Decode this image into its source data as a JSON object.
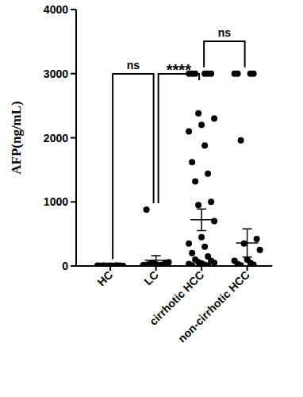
{
  "chart_data": {
    "type": "scatter",
    "y_label": "AFP(ng/mL)",
    "color": "#000000",
    "categories": [
      "HC",
      "LC",
      "cirrhotic HCC",
      "non-cirrhotic HCC"
    ],
    "points": [
      [
        2,
        3,
        4,
        5,
        6,
        3,
        2,
        4,
        5,
        7,
        3,
        4,
        6,
        2,
        5
      ],
      [
        5,
        10,
        15,
        20,
        30,
        40,
        50,
        60,
        25,
        12,
        8,
        880
      ],
      [
        3000,
        3000,
        3000,
        3000,
        3000,
        3000,
        2380,
        2300,
        2200,
        2100,
        1880,
        1620,
        1440,
        1320,
        1000,
        950,
        700,
        450,
        350,
        300,
        200,
        150,
        100,
        80,
        60,
        50,
        40,
        30,
        20,
        10,
        5
      ],
      [
        3000,
        3000,
        3000,
        3000,
        1960,
        420,
        350,
        250,
        100,
        80,
        50,
        30,
        20,
        10
      ]
    ],
    "means": [
      4,
      90,
      720,
      360
    ],
    "errors": [
      1,
      70,
      170,
      220
    ],
    "ylim": [
      0,
      4000
    ],
    "yticks": [
      0,
      1000,
      2000,
      3000,
      4000
    ],
    "annotations": [
      {
        "text": "ns",
        "between": [
          0,
          1
        ]
      },
      {
        "text": "****",
        "between": [
          1,
          2
        ]
      },
      {
        "text": "ns",
        "between": [
          2,
          3
        ]
      }
    ]
  }
}
